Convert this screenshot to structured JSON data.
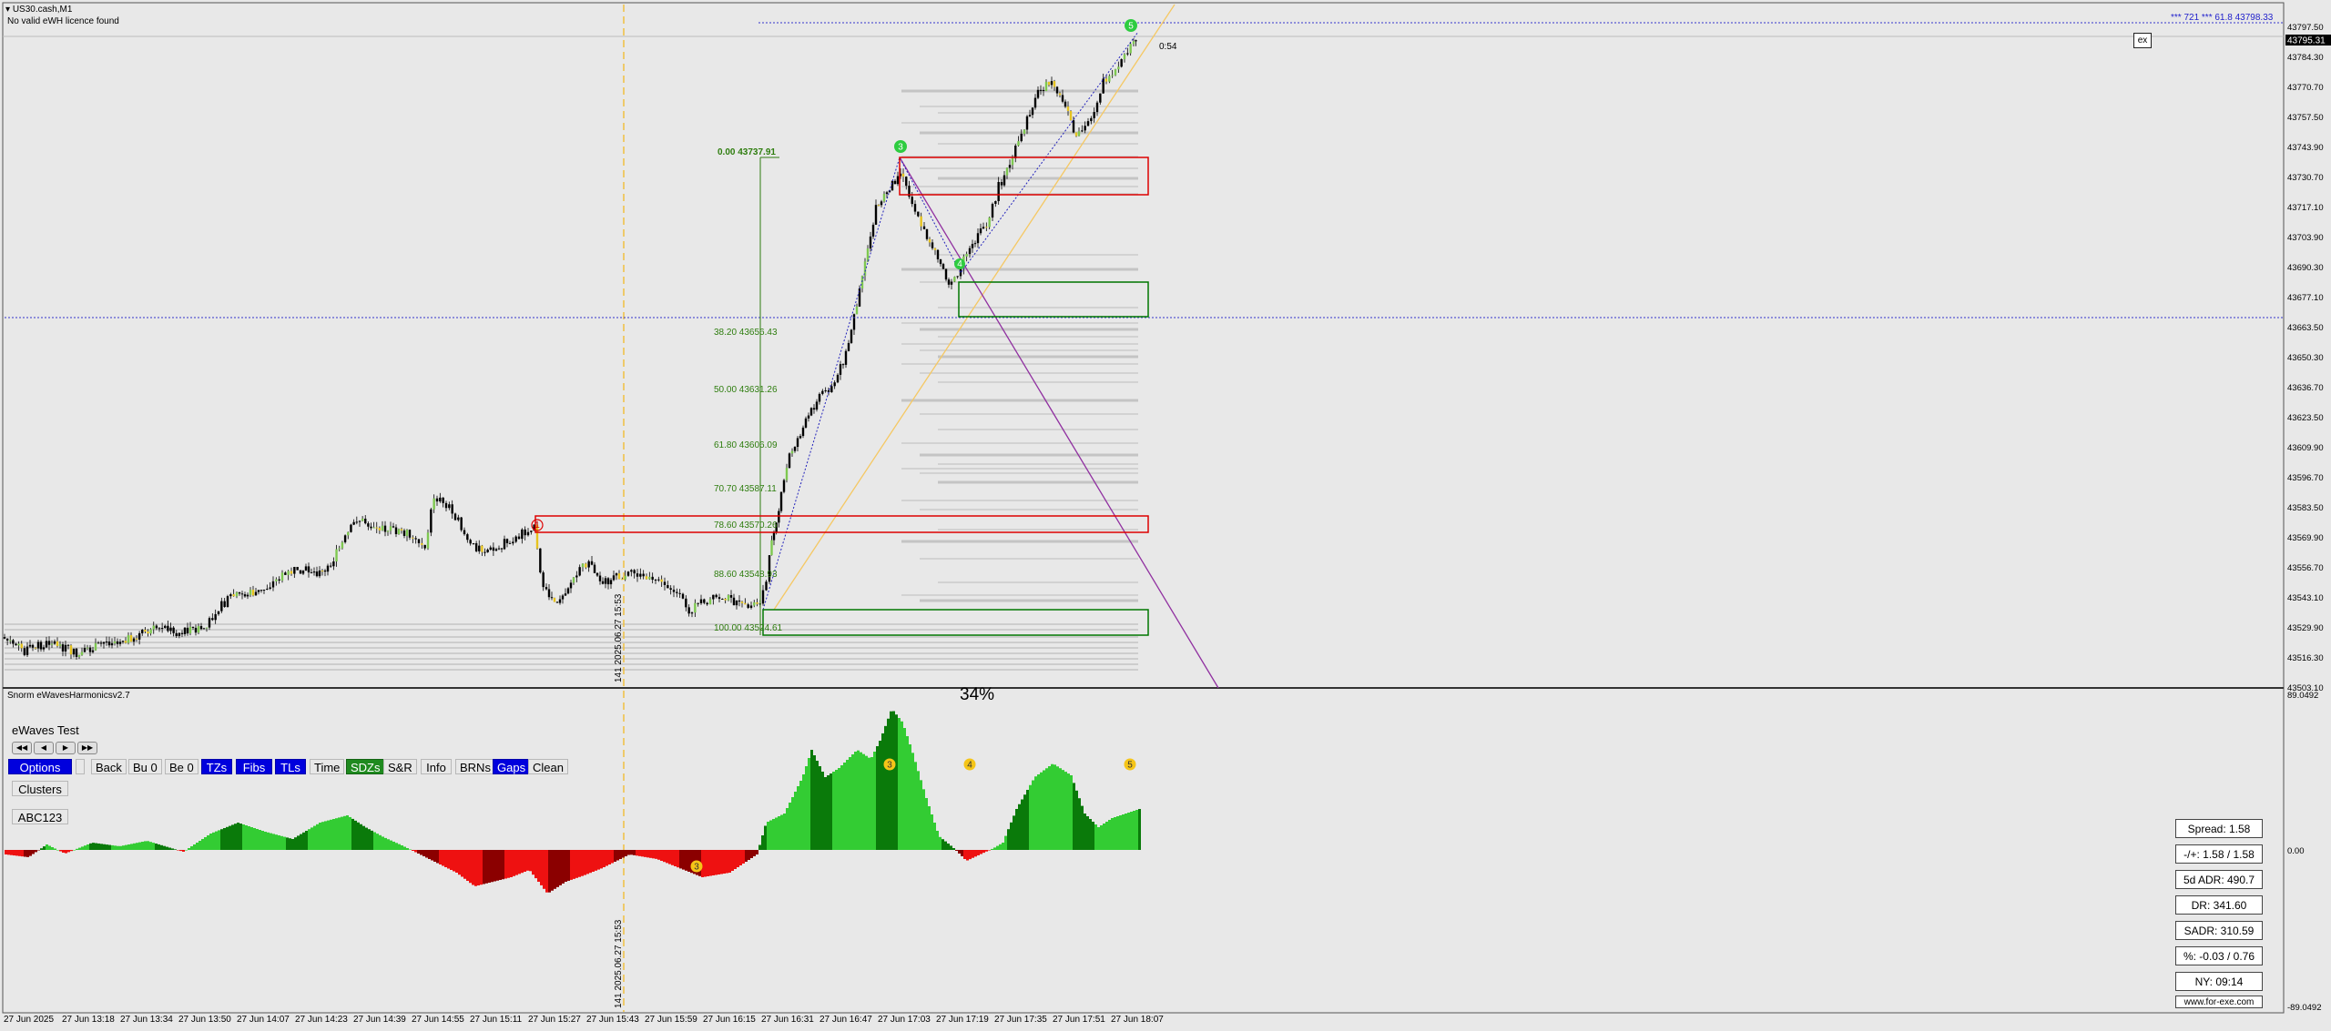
{
  "header": {
    "symbol_timeframe": "US30.cash,M1",
    "licence_status": "No valid eWH licence found",
    "countdown": "0:54",
    "fib_target_label": "*** 721 *** 61.8",
    "fib_target_price": "43798.33"
  },
  "price_axis": {
    "current_price": "43795.31",
    "ticks": [
      "43797.50",
      "43784.30",
      "43770.70",
      "43757.50",
      "43743.90",
      "43730.70",
      "43717.10",
      "43703.90",
      "43690.30",
      "43677.10",
      "43663.50",
      "43650.30",
      "43636.70",
      "43623.50",
      "43609.90",
      "43596.70",
      "43583.50",
      "43569.90",
      "43556.70",
      "43543.10",
      "43529.90",
      "43516.30",
      "43503.10"
    ]
  },
  "oscillator_axis": {
    "top": "89.0492",
    "zero": "0.00",
    "bottom": "-89.0492"
  },
  "fib_levels": [
    {
      "ratio": "0.00",
      "price": "43737.91"
    },
    {
      "ratio": "38.20",
      "price": "43656.43"
    },
    {
      "ratio": "50.00",
      "price": "43631.26"
    },
    {
      "ratio": "61.80",
      "price": "43606.09"
    },
    {
      "ratio": "70.70",
      "price": "43587.11"
    },
    {
      "ratio": "78.60",
      "price": "43570.26"
    },
    {
      "ratio": "88.60",
      "price": "43548.93"
    },
    {
      "ratio": "100.00",
      "price": "43524.61"
    }
  ],
  "vline_label": "141 2025.06.27 15:53",
  "wave_labels": {
    "w1": "1",
    "w3": "3",
    "w4": "4",
    "w5": "5"
  },
  "indicator": {
    "name": "Snorm eWavesHarmonicsv2.7",
    "percent": "34%",
    "osc_labels": {
      "a": "3",
      "b": "3",
      "c": "4",
      "d": "5"
    }
  },
  "panel": {
    "title": "eWaves Test",
    "nav_icons": [
      "prev-icon",
      "back-icon",
      "forward-icon",
      "next-icon"
    ],
    "buttons": {
      "options": "Options",
      "back": "Back",
      "bu0": "Bu 0",
      "be0": "Be 0",
      "tzs": "TZs",
      "fibs": "Fibs",
      "tls": "TLs",
      "time": "Time",
      "sdzs": "SDZs",
      "sr": "S&R",
      "info": "Info",
      "brns": "BRNs",
      "gaps": "Gaps",
      "clean": "Clean",
      "clusters": "Clusters",
      "abc": "ABC123"
    }
  },
  "stats": {
    "spread": "Spread: 1.58",
    "plus_minus": "-/+: 1.58 / 1.58",
    "adr5": "5d ADR: 490.7",
    "dr": "DR: 341.60",
    "sadr": "SADR: 310.59",
    "pct": "%: -0.03 / 0.76",
    "ny": "NY: 09:14",
    "site": "www.for-exe.com"
  },
  "exit_button": "ex",
  "time_axis": [
    "27 Jun 2025",
    "27 Jun 13:18",
    "27 Jun 13:34",
    "27 Jun 13:50",
    "27 Jun 14:07",
    "27 Jun 14:23",
    "27 Jun 14:39",
    "27 Jun 14:55",
    "27 Jun 15:11",
    "27 Jun 15:27",
    "27 Jun 15:43",
    "27 Jun 15:59",
    "27 Jun 16:15",
    "27 Jun 16:31",
    "27 Jun 16:47",
    "27 Jun 17:03",
    "27 Jun 17:19",
    "27 Jun 17:35",
    "27 Jun 17:51",
    "27 Jun 18:07"
  ],
  "colors": {
    "bull_candle": "#000000",
    "bear_candle": "#000000",
    "supply_zone": "#dd0000",
    "demand_zone": "#007700",
    "fib": "#2e7d0e",
    "osc_bull": "#33cc33",
    "osc_bull_dark": "#0a7a0a",
    "osc_bear": "#ee1111",
    "osc_bear_dark": "#8b0000"
  }
}
